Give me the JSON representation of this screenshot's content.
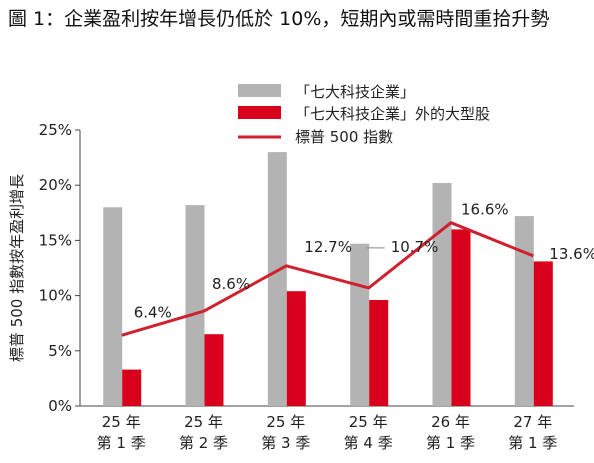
{
  "title": "圖 1：企業盈利按年增長仍低於 10%，短期內或需時間重拾升勢",
  "chart_data": {
    "type": "bar",
    "categories": [
      [
        "25 年",
        "第 1 季"
      ],
      [
        "25 年",
        "第 2 季"
      ],
      [
        "25 年",
        "第 3 季"
      ],
      [
        "25 年",
        "第 4 季"
      ],
      [
        "26 年",
        "第 1 季"
      ],
      [
        "27 年",
        "第 1 季"
      ]
    ],
    "series": [
      {
        "name": "「七大科技企業」",
        "kind": "bar",
        "color": "#b3b3b3",
        "values": [
          18.0,
          18.2,
          23.0,
          14.7,
          20.2,
          17.2
        ]
      },
      {
        "name": "「七大科技企業」外的大型股",
        "kind": "bar",
        "color": "#d9001b",
        "values": [
          3.3,
          6.5,
          10.4,
          9.6,
          16.0,
          13.1
        ]
      },
      {
        "name": "標普 500 指數",
        "kind": "line",
        "color": "#d0202e",
        "values": [
          6.4,
          8.6,
          12.7,
          10.7,
          16.6,
          13.6
        ],
        "labels": [
          "6.4%",
          "8.6%",
          "12.7%",
          "10.7%",
          "16.6%",
          "13.6%"
        ]
      }
    ],
    "ylabel": "標普 500 指數按年盈利增長",
    "ylim": [
      0,
      25
    ],
    "yticks": [
      "0%",
      "5%",
      "10%",
      "15%",
      "20%",
      "25%"
    ],
    "grid": false,
    "legend_position": "top"
  }
}
